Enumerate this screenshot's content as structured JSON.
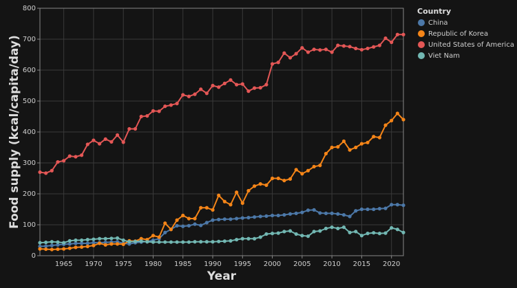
{
  "chart_data": {
    "type": "line",
    "x_label": "Year",
    "y_label": "Food supply (kcal/capita/day)",
    "legend_title": "Country",
    "legend_position": "right",
    "x": [
      1961,
      1962,
      1963,
      1964,
      1965,
      1966,
      1967,
      1968,
      1969,
      1970,
      1971,
      1972,
      1973,
      1974,
      1975,
      1976,
      1977,
      1978,
      1979,
      1980,
      1981,
      1982,
      1983,
      1984,
      1985,
      1986,
      1987,
      1988,
      1989,
      1990,
      1991,
      1992,
      1993,
      1994,
      1995,
      1996,
      1997,
      1998,
      1999,
      2000,
      2001,
      2002,
      2003,
      2004,
      2005,
      2006,
      2007,
      2008,
      2009,
      2010,
      2011,
      2012,
      2013,
      2014,
      2015,
      2016,
      2017,
      2018,
      2019,
      2020,
      2021,
      2022
    ],
    "xlim": [
      1961,
      2022
    ],
    "xticks": [
      1965,
      1970,
      1975,
      1980,
      1985,
      1990,
      1995,
      2000,
      2005,
      2010,
      2015,
      2020
    ],
    "ylim": [
      0,
      800
    ],
    "yticks": [
      0,
      100,
      200,
      300,
      400,
      500,
      600,
      700,
      800
    ],
    "grid": true,
    "series": [
      {
        "name": "China",
        "color": "#4c78a8",
        "values": [
          30,
          31,
          33,
          35,
          37,
          38,
          40,
          40,
          40,
          42,
          42,
          43,
          44,
          45,
          40,
          38,
          42,
          44,
          46,
          50,
          55,
          75,
          85,
          97,
          95,
          97,
          102,
          98,
          107,
          115,
          117,
          118,
          118,
          120,
          122,
          123,
          125,
          127,
          128,
          130,
          130,
          132,
          135,
          137,
          140,
          147,
          148,
          138,
          137,
          137,
          135,
          132,
          127,
          145,
          150,
          150,
          150,
          152,
          153,
          165,
          165,
          163
        ]
      },
      {
        "name": "Republic of Korea",
        "color": "#f58518",
        "values": [
          22,
          21,
          20,
          21,
          22,
          24,
          27,
          28,
          30,
          33,
          40,
          35,
          38,
          38,
          37,
          48,
          47,
          55,
          52,
          65,
          60,
          105,
          85,
          115,
          130,
          120,
          120,
          155,
          155,
          148,
          195,
          175,
          165,
          205,
          170,
          210,
          225,
          232,
          228,
          250,
          250,
          243,
          248,
          278,
          265,
          275,
          288,
          292,
          330,
          350,
          352,
          370,
          342,
          350,
          362,
          366,
          385,
          382,
          422,
          437,
          460,
          440
        ]
      },
      {
        "name": "United States of America",
        "color": "#e45756",
        "values": [
          270,
          267,
          275,
          303,
          307,
          322,
          320,
          325,
          360,
          373,
          362,
          377,
          368,
          390,
          367,
          410,
          410,
          450,
          452,
          468,
          467,
          483,
          487,
          492,
          520,
          515,
          522,
          538,
          525,
          550,
          545,
          557,
          568,
          553,
          555,
          532,
          542,
          543,
          553,
          620,
          625,
          655,
          640,
          653,
          672,
          658,
          667,
          665,
          667,
          658,
          680,
          678,
          676,
          670,
          666,
          670,
          675,
          680,
          703,
          690,
          715,
          715
        ]
      },
      {
        "name": "Viet Nam",
        "color": "#72b7b2",
        "values": [
          42,
          43,
          45,
          44,
          42,
          48,
          50,
          50,
          52,
          53,
          55,
          55,
          56,
          57,
          50,
          45,
          46,
          47,
          45,
          44,
          44,
          44,
          44,
          44,
          44,
          44,
          45,
          45,
          45,
          45,
          46,
          47,
          48,
          52,
          55,
          55,
          55,
          60,
          70,
          72,
          73,
          78,
          80,
          70,
          65,
          63,
          78,
          80,
          88,
          92,
          88,
          92,
          75,
          78,
          65,
          72,
          74,
          72,
          73,
          90,
          85,
          75
        ]
      }
    ]
  }
}
